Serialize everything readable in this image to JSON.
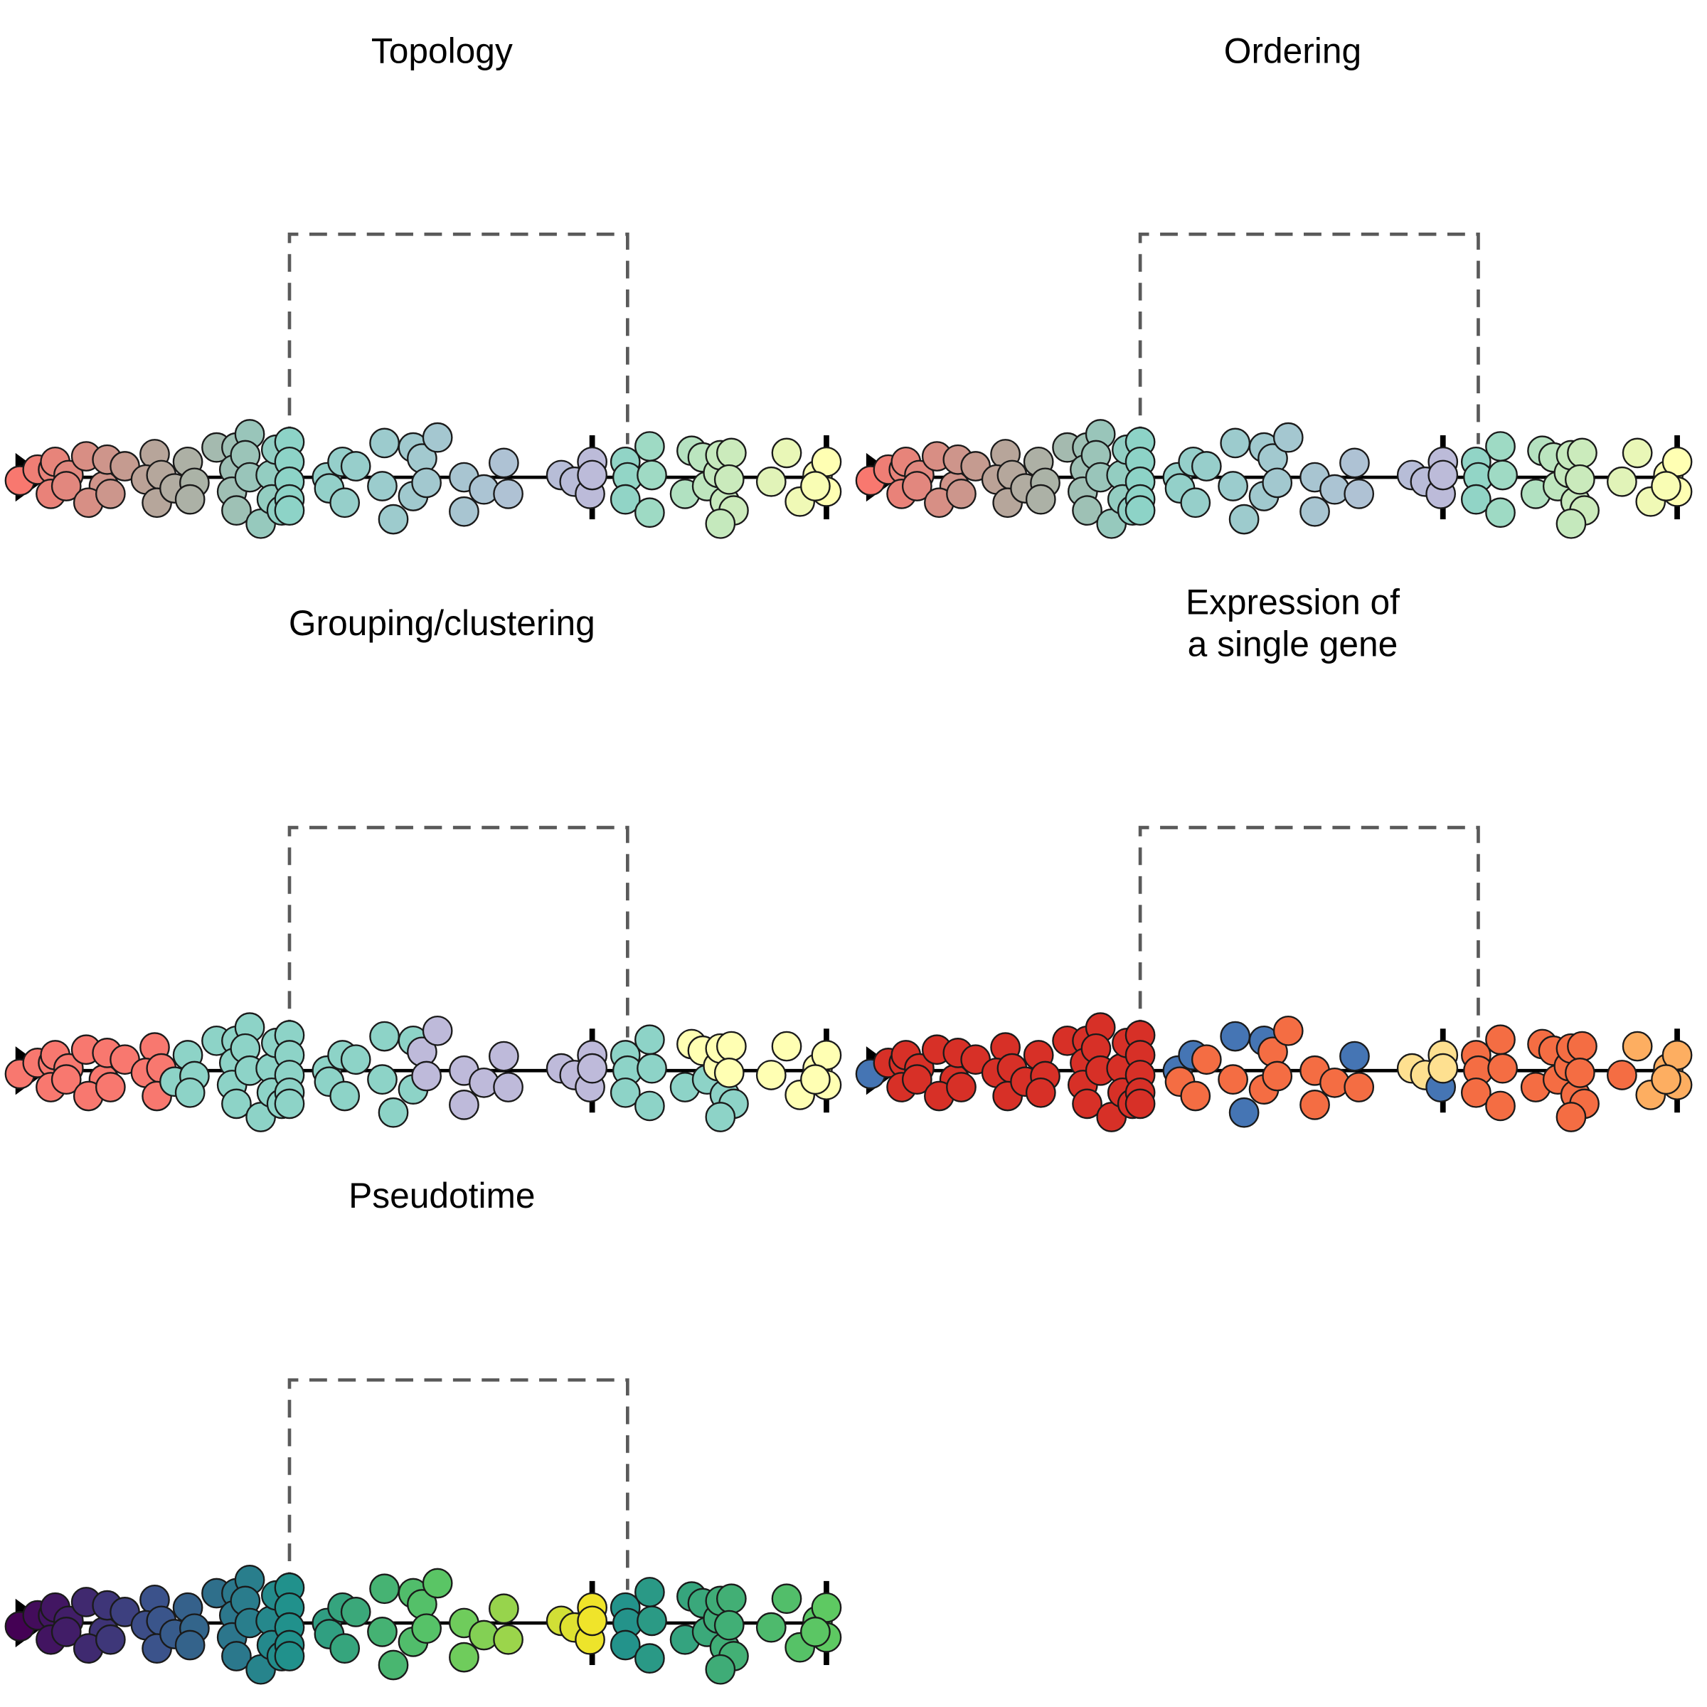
{
  "panels": [
    {
      "id": "topology",
      "title_lines": [
        "Topology"
      ],
      "color_scheme": "topology"
    },
    {
      "id": "ordering",
      "title_lines": [
        "Ordering"
      ],
      "color_scheme": "topology"
    },
    {
      "id": "grouping",
      "title_lines": [
        "Grouping/clustering"
      ],
      "color_scheme": "grouping"
    },
    {
      "id": "expression",
      "title_lines": [
        "Expression of",
        "a single gene"
      ],
      "color_scheme": "expression"
    },
    {
      "id": "pseudotime",
      "title_lines": [
        "Pseudotime"
      ],
      "color_scheme": "pseudotime"
    }
  ],
  "colors": {
    "line": "#000000",
    "dashed_connector": "#5a5a5a",
    "point_outline": "#1a1a1a",
    "topology_gradient": [
      "#f8786f",
      "#b7a59a",
      "#8dd3c7",
      "#bebada",
      "#8dd3c7",
      "#ffffb3"
    ],
    "grouping": {
      "group1": "#f8786f",
      "group2": "#8dd3c7",
      "group3": "#bebada",
      "group4": "#ffffb3"
    },
    "expression": {
      "high": "#d73027",
      "mid": "#f46d43",
      "low": "#fdae61",
      "lowest": "#fee090",
      "off": "#4575b4"
    },
    "pseudotime_gradient": [
      "#440154",
      "#3b528b",
      "#21918c",
      "#5ec962",
      "#fde725"
    ]
  }
}
